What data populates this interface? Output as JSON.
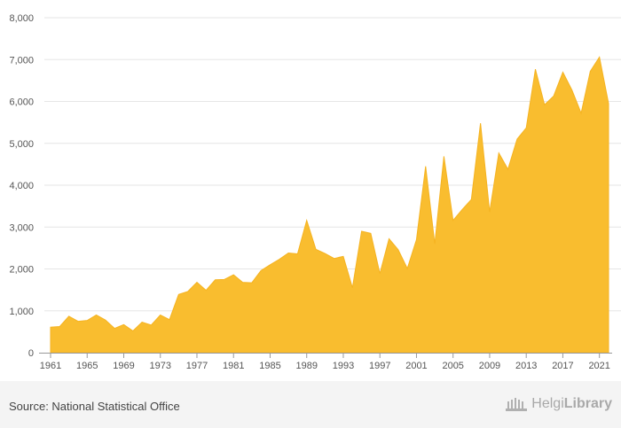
{
  "chart_data": {
    "type": "area",
    "color": "#F9BD2F",
    "grid": true,
    "ylim": [
      0,
      8000
    ],
    "y_ticks": [
      "0",
      "1,000",
      "2,000",
      "3,000",
      "4,000",
      "5,000",
      "6,000",
      "7,000",
      "8,000"
    ],
    "y_tick_values": [
      0,
      1000,
      2000,
      3000,
      4000,
      5000,
      6000,
      7000,
      8000
    ],
    "x_tick_labels": [
      "1961",
      "1965",
      "1969",
      "1973",
      "1977",
      "1981",
      "1985",
      "1989",
      "1993",
      "1997",
      "2001",
      "2005",
      "2009",
      "2013",
      "2017",
      "2021"
    ],
    "x": [
      1961,
      1962,
      1963,
      1964,
      1965,
      1966,
      1967,
      1968,
      1969,
      1970,
      1971,
      1972,
      1973,
      1974,
      1975,
      1976,
      1977,
      1978,
      1979,
      1980,
      1981,
      1982,
      1983,
      1984,
      1985,
      1986,
      1987,
      1988,
      1989,
      1990,
      1991,
      1992,
      1993,
      1994,
      1995,
      1996,
      1997,
      1998,
      1999,
      2000,
      2001,
      2002,
      2003,
      2004,
      2005,
      2006,
      2007,
      2008,
      2009,
      2010,
      2011,
      2012,
      2013,
      2014,
      2015,
      2016,
      2017,
      2018,
      2019,
      2020,
      2021,
      2022
    ],
    "values": [
      610,
      625,
      870,
      750,
      770,
      900,
      780,
      580,
      670,
      520,
      730,
      660,
      900,
      790,
      1390,
      1460,
      1680,
      1490,
      1740,
      1750,
      1860,
      1680,
      1670,
      1960,
      2100,
      2230,
      2380,
      2360,
      3160,
      2470,
      2370,
      2250,
      2300,
      1550,
      2900,
      2850,
      1890,
      2720,
      2460,
      2010,
      2700,
      4450,
      2600,
      4690,
      3160,
      3420,
      3660,
      5480,
      3360,
      4770,
      4380,
      5100,
      5370,
      6770,
      5920,
      6130,
      6700,
      6270,
      5720,
      6720,
      7060,
      5950
    ]
  },
  "footer": {
    "source": "Source: National Statistical Office",
    "brand_light": "Helgi",
    "brand_bold": "Library"
  }
}
